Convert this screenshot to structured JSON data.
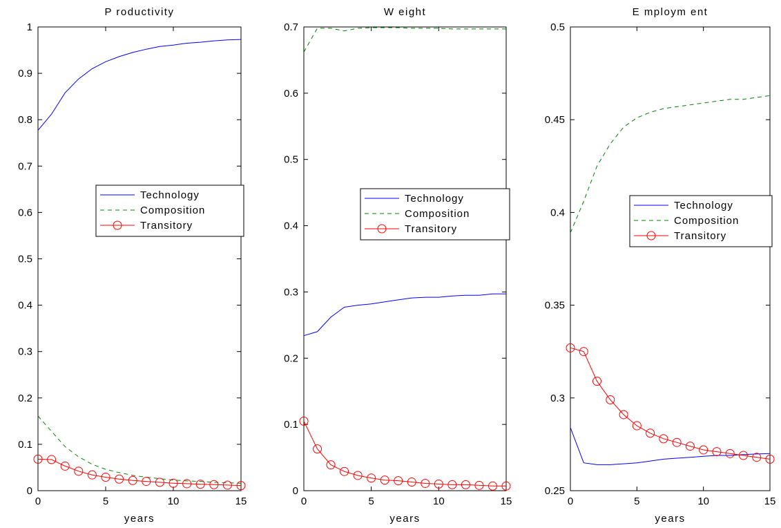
{
  "chart_data": [
    {
      "type": "line",
      "title": "P roductivity",
      "xlabel": "years",
      "ylabel": "",
      "xlim": [
        0,
        15
      ],
      "ylim": [
        0,
        1
      ],
      "xticks": [
        0,
        5,
        10,
        15
      ],
      "yticks": [
        0,
        0.1,
        0.2,
        0.3,
        0.4,
        0.5,
        0.6,
        0.7,
        0.8,
        0.9,
        1
      ],
      "ytick_labels": [
        "0",
        "0.1",
        "0.2",
        "0.3",
        "0.4",
        "0.5",
        "0.6",
        "0.7",
        "0.8",
        "0.9",
        "1"
      ],
      "grid": false,
      "legend": "center-right",
      "x": [
        0,
        1,
        2,
        3,
        4,
        5,
        6,
        7,
        8,
        9,
        10,
        11,
        12,
        13,
        14,
        15
      ],
      "series": [
        {
          "name": "Technology",
          "color": "#0000ff",
          "style": "solid",
          "marker": "none",
          "values": [
            0.777,
            0.812,
            0.858,
            0.888,
            0.91,
            0.925,
            0.936,
            0.945,
            0.952,
            0.958,
            0.961,
            0.965,
            0.967,
            0.97,
            0.972,
            0.973
          ]
        },
        {
          "name": "Composition",
          "color": "#008000",
          "style": "dashed",
          "marker": "none",
          "values": [
            0.161,
            0.128,
            0.095,
            0.073,
            0.057,
            0.046,
            0.039,
            0.033,
            0.029,
            0.026,
            0.023,
            0.021,
            0.02,
            0.018,
            0.017,
            0.016
          ]
        },
        {
          "name": "Transitory",
          "color": "#ff0000",
          "style": "solid",
          "marker": "circle",
          "values": [
            0.068,
            0.067,
            0.053,
            0.042,
            0.034,
            0.029,
            0.025,
            0.022,
            0.02,
            0.018,
            0.016,
            0.015,
            0.014,
            0.013,
            0.012,
            0.011
          ]
        }
      ]
    },
    {
      "type": "line",
      "title": "W eight",
      "xlabel": "years",
      "ylabel": "",
      "xlim": [
        0,
        15
      ],
      "ylim": [
        0,
        0.7
      ],
      "xticks": [
        0,
        5,
        10,
        15
      ],
      "yticks": [
        0,
        0.1,
        0.2,
        0.3,
        0.4,
        0.5,
        0.6,
        0.7
      ],
      "ytick_labels": [
        "0",
        "0.1",
        "0.2",
        "0.3",
        "0.4",
        "0.5",
        "0.6",
        "0.7"
      ],
      "grid": false,
      "legend": "center-right",
      "x": [
        0,
        1,
        2,
        3,
        4,
        5,
        6,
        7,
        8,
        9,
        10,
        11,
        12,
        13,
        14,
        15
      ],
      "series": [
        {
          "name": "Technology",
          "color": "#0000ff",
          "style": "solid",
          "marker": "none",
          "values": [
            0.234,
            0.24,
            0.262,
            0.277,
            0.28,
            0.282,
            0.285,
            0.288,
            0.291,
            0.292,
            0.292,
            0.294,
            0.295,
            0.295,
            0.297,
            0.297
          ]
        },
        {
          "name": "Composition",
          "color": "#008000",
          "style": "dashed",
          "marker": "none",
          "values": [
            0.662,
            0.698,
            0.698,
            0.694,
            0.698,
            0.699,
            0.699,
            0.699,
            0.698,
            0.698,
            0.698,
            0.697,
            0.697,
            0.697,
            0.697,
            0.697
          ]
        },
        {
          "name": "Transitory",
          "color": "#ff0000",
          "style": "solid",
          "marker": "circle",
          "values": [
            0.105,
            0.063,
            0.039,
            0.029,
            0.023,
            0.019,
            0.016,
            0.015,
            0.013,
            0.011,
            0.01,
            0.009,
            0.009,
            0.008,
            0.007,
            0.007
          ]
        }
      ]
    },
    {
      "type": "line",
      "title": "E mploym ent",
      "xlabel": "years",
      "ylabel": "",
      "xlim": [
        0,
        15
      ],
      "ylim": [
        0.25,
        0.5
      ],
      "xticks": [
        0,
        5,
        10,
        15
      ],
      "yticks": [
        0.25,
        0.3,
        0.35,
        0.4,
        0.45,
        0.5
      ],
      "ytick_labels": [
        "0.25",
        "0.3",
        "0.35",
        "0.4",
        "0.45",
        "0.5"
      ],
      "grid": false,
      "legend": "center-right",
      "x": [
        0,
        1,
        2,
        3,
        4,
        5,
        6,
        7,
        8,
        9,
        10,
        11,
        12,
        13,
        14,
        15
      ],
      "series": [
        {
          "name": "Technology",
          "color": "#0000ff",
          "style": "solid",
          "marker": "none",
          "values": [
            0.284,
            0.265,
            0.264,
            0.264,
            0.2645,
            0.265,
            0.266,
            0.267,
            0.2675,
            0.268,
            0.2685,
            0.269,
            0.269,
            0.2695,
            0.2698,
            0.27
          ]
        },
        {
          "name": "Composition",
          "color": "#008000",
          "style": "dashed",
          "marker": "none",
          "values": [
            0.389,
            0.406,
            0.425,
            0.437,
            0.446,
            0.451,
            0.454,
            0.456,
            0.457,
            0.458,
            0.459,
            0.46,
            0.461,
            0.461,
            0.462,
            0.463
          ]
        },
        {
          "name": "Transitory",
          "color": "#ff0000",
          "style": "solid",
          "marker": "circle",
          "values": [
            0.327,
            0.325,
            0.309,
            0.299,
            0.291,
            0.285,
            0.281,
            0.278,
            0.276,
            0.274,
            0.272,
            0.271,
            0.27,
            0.269,
            0.268,
            0.267
          ]
        }
      ]
    }
  ]
}
